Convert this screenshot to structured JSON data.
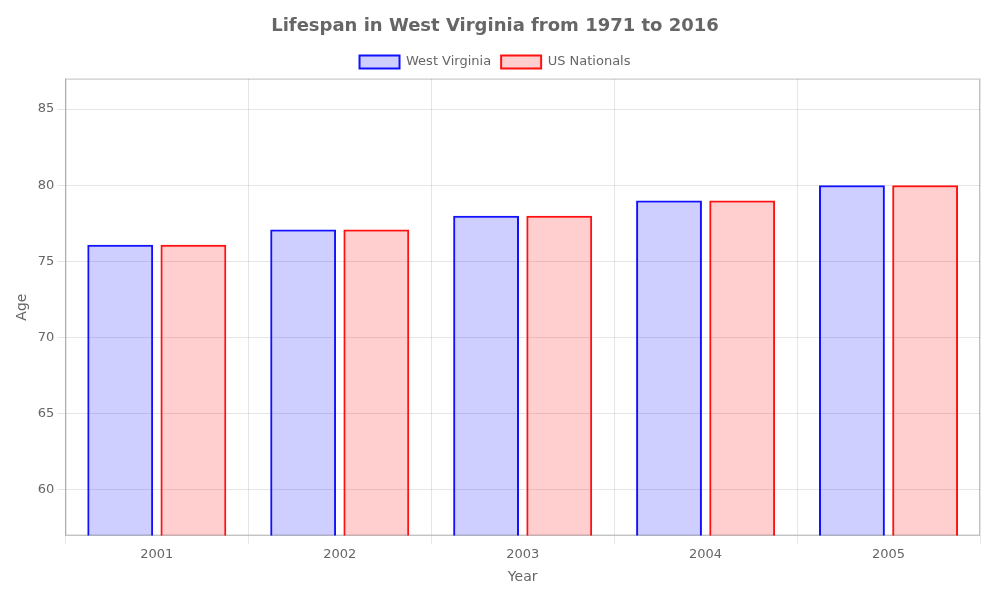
{
  "chart_data": {
    "type": "bar",
    "title": "Lifespan in West Virginia from 1971 to 2016",
    "x_label": "Year",
    "y_label": "Age",
    "categories": [
      "2001",
      "2002",
      "2003",
      "2004",
      "2005"
    ],
    "series": [
      {
        "name": "West Virginia",
        "color": "#1111ff",
        "values": [
          76.1,
          77.1,
          78.0,
          79.0,
          80.0
        ]
      },
      {
        "name": "US Nationals",
        "color": "#ff1111",
        "values": [
          76.1,
          77.1,
          78.0,
          79.0,
          80.0
        ]
      }
    ],
    "ylim": [
      57,
      87
    ],
    "yticks": [
      60,
      65,
      70,
      75,
      80,
      85
    ],
    "grid": true,
    "legend": "top"
  }
}
